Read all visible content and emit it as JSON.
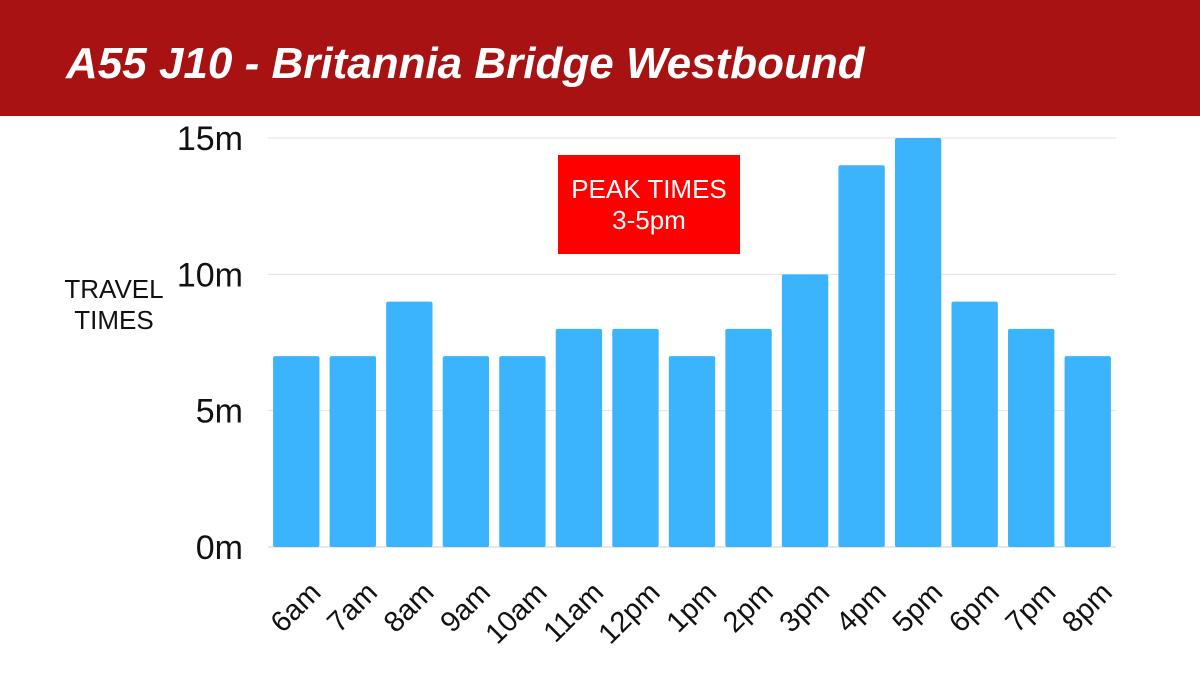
{
  "header": {
    "title": "A55 J10 - Britannia Bridge Westbound"
  },
  "annotation": {
    "line1": "PEAK TIMES",
    "line2": "3-5pm",
    "color": "#ff0000"
  },
  "colors": {
    "header_bg": "#a81212",
    "bar": "#3bb4fd"
  },
  "chart_data": {
    "type": "bar",
    "title": "A55 J10 - Britannia Bridge Westbound",
    "ylabel": "TRAVEL TIMES",
    "xlabel": "",
    "categories": [
      "6am",
      "7am",
      "8am",
      "9am",
      "10am",
      "11am",
      "12pm",
      "1pm",
      "2pm",
      "3pm",
      "4pm",
      "5pm",
      "6pm",
      "7pm",
      "8pm"
    ],
    "values": [
      7,
      7,
      9,
      7,
      7,
      8,
      8,
      7,
      8,
      10,
      14,
      15,
      9,
      8,
      7
    ],
    "ylim": [
      0,
      15
    ],
    "yticks": [
      0,
      5,
      10,
      15
    ],
    "ytick_labels": [
      "0m",
      "5m",
      "10m",
      "15m"
    ],
    "grid": true,
    "annotations": [
      "PEAK TIMES 3-5pm"
    ]
  }
}
